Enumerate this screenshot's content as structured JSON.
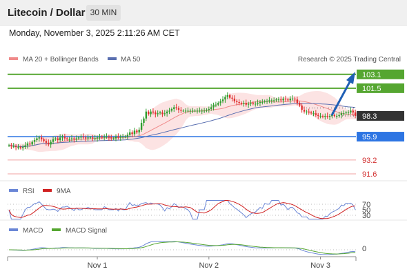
{
  "header": {
    "title": "Litecoin / Dollar",
    "timeframe": "30 MIN"
  },
  "datetime": "Monday, November 3, 2025 2:11:26 AM CET",
  "legend": {
    "ma": "MA 20 + Bollinger Bands",
    "ma50": "MA 50",
    "credit": "Research © 2025 Trading Central"
  },
  "colors": {
    "bull": "#2e9e2e",
    "bear": "#e03030",
    "ma20": "#f08a8a",
    "ma50": "#5a6fb0",
    "band": "#fbdada",
    "target": "#55a630",
    "pivot": "#2d75e3",
    "support": "#f2a0a0",
    "support_text": "#d23030",
    "arrow": "#1f5fb5",
    "last": "#333333"
  },
  "levels": {
    "r2": {
      "value": 103.1,
      "label": "103.1"
    },
    "r1": {
      "value": 101.5,
      "label": "101.5"
    },
    "last": {
      "value": 98.3,
      "label": "98.3"
    },
    "pivot": {
      "value": 95.9,
      "label": "95.9"
    },
    "s1": {
      "value": 93.2,
      "label": "93.2"
    },
    "s2": {
      "value": 91.6,
      "label": "91.6"
    }
  },
  "rsi": {
    "label": "RSI",
    "ma_label": "9MA",
    "ticks": [
      "70",
      "50",
      "30"
    ]
  },
  "macd": {
    "label": "MACD",
    "signal_label": "MACD Signal",
    "zero": "0"
  },
  "x_labels": [
    "Nov 1",
    "Nov 2",
    "Nov 3"
  ],
  "chart_data": {
    "type": "candlestick",
    "title": "Litecoin / Dollar",
    "timeframe": "30 MIN",
    "ylim": [
      90.8,
      104.2
    ],
    "x_ticks": [
      {
        "label": "Nov 1",
        "index": 38
      },
      {
        "label": "Nov 2",
        "index": 86
      },
      {
        "label": "Nov 3",
        "index": 134
      }
    ],
    "close": [
      94.9,
      94.8,
      94.8,
      94.7,
      94.7,
      94.6,
      94.7,
      94.9,
      95.1,
      95.0,
      95.3,
      95.5,
      95.7,
      95.8,
      95.6,
      95.4,
      95.2,
      95.0,
      95.3,
      95.6,
      95.7,
      95.5,
      95.8,
      95.9,
      95.7,
      95.6,
      95.6,
      95.7,
      95.6,
      95.7,
      95.8,
      95.9,
      95.8,
      95.7,
      95.8,
      95.8,
      95.7,
      95.7,
      95.8,
      95.9,
      95.8,
      95.9,
      95.9,
      95.8,
      95.7,
      95.7,
      95.9,
      95.8,
      95.9,
      95.9,
      95.9,
      96.1,
      96.4,
      96.2,
      96.6,
      96.4,
      96.7,
      97.5,
      98.0,
      98.8,
      98.5,
      98.8,
      98.7,
      98.5,
      98.6,
      98.7,
      98.5,
      98.6,
      98.8,
      98.9,
      99.1,
      99.3,
      99.2,
      99.0,
      98.9,
      98.9,
      98.9,
      98.9,
      98.9,
      98.9,
      98.9,
      98.9,
      98.9,
      98.9,
      98.9,
      99.0,
      99.1,
      99.3,
      99.6,
      99.6,
      99.8,
      100.0,
      100.2,
      100.5,
      100.7,
      100.4,
      100.3,
      100.0,
      99.9,
      99.8,
      99.7,
      99.8,
      99.6,
      99.7,
      99.8,
      99.7,
      99.7,
      99.8,
      99.9,
      99.9,
      100.0,
      100.0,
      100.1,
      100.1,
      100.1,
      100.2,
      100.2,
      100.1,
      100.3,
      100.2,
      100.1,
      100.3,
      100.3,
      100.2,
      99.8,
      99.5,
      99.0,
      98.8,
      98.8,
      98.7,
      98.6,
      98.6,
      98.4,
      98.3,
      98.3,
      98.2,
      98.3,
      98.2,
      98.3,
      98.4,
      98.3,
      98.3,
      98.4,
      98.6,
      98.6,
      98.7,
      98.7,
      98.9,
      98.7,
      98.3
    ],
    "open": [
      94.9,
      94.9,
      94.8,
      94.8,
      94.7,
      94.7,
      94.6,
      94.7,
      94.9,
      95.1,
      95.0,
      95.3,
      95.5,
      95.7,
      95.8,
      95.6,
      95.4,
      95.2,
      95.0,
      95.3,
      95.6,
      95.7,
      95.5,
      95.8,
      95.9,
      95.7,
      95.6,
      95.6,
      95.7,
      95.6,
      95.7,
      95.8,
      95.9,
      95.8,
      95.7,
      95.8,
      95.8,
      95.7,
      95.7,
      95.8,
      95.9,
      95.8,
      95.9,
      95.9,
      95.8,
      95.7,
      95.7,
      95.9,
      95.8,
      95.9,
      95.9,
      95.9,
      96.1,
      96.4,
      96.2,
      96.6,
      96.4,
      96.7,
      97.5,
      98.0,
      98.8,
      98.5,
      98.8,
      98.7,
      98.5,
      98.6,
      98.7,
      98.5,
      98.6,
      98.8,
      98.9,
      99.1,
      99.3,
      99.2,
      99.0,
      98.9,
      98.9,
      98.9,
      98.9,
      98.9,
      98.9,
      98.9,
      98.9,
      98.9,
      98.9,
      98.9,
      99.0,
      99.1,
      99.3,
      99.6,
      99.6,
      99.8,
      100.0,
      100.2,
      100.5,
      100.7,
      100.4,
      100.3,
      100.0,
      99.9,
      99.8,
      99.7,
      99.8,
      99.6,
      99.7,
      99.8,
      99.7,
      99.7,
      99.8,
      99.9,
      99.9,
      100.0,
      100.0,
      100.1,
      100.1,
      100.1,
      100.2,
      100.2,
      100.1,
      100.3,
      100.2,
      100.1,
      100.3,
      100.3,
      100.2,
      99.8,
      99.5,
      99.0,
      98.8,
      98.8,
      98.7,
      98.6,
      98.6,
      98.4,
      98.3,
      98.3,
      98.2,
      98.3,
      98.2,
      98.3,
      98.4,
      98.3,
      98.3,
      98.4,
      98.6,
      98.6,
      98.7,
      98.7,
      98.9,
      98.7
    ],
    "series": [
      {
        "name": "MA 20",
        "type": "line"
      },
      {
        "name": "MA 50",
        "type": "line"
      },
      {
        "name": "RSI",
        "pane": "rsi",
        "type": "line"
      },
      {
        "name": "9MA",
        "pane": "rsi",
        "type": "line"
      },
      {
        "name": "MACD",
        "pane": "macd",
        "type": "line"
      },
      {
        "name": "MACD Signal",
        "pane": "macd",
        "type": "line"
      }
    ],
    "price_levels": [
      103.1,
      101.5,
      98.3,
      95.9,
      93.2,
      91.6
    ]
  }
}
